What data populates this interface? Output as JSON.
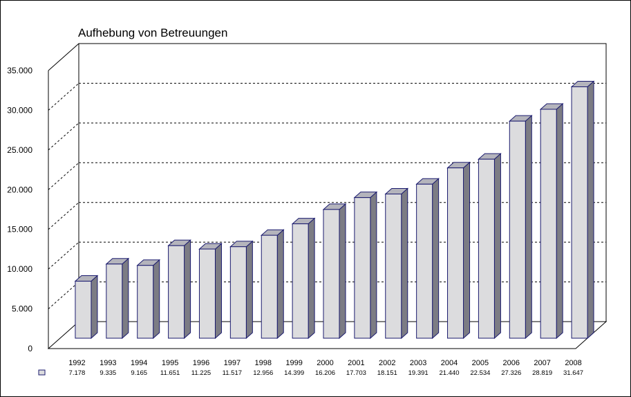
{
  "chart_data": {
    "type": "bar",
    "title": "Aufhebung von Betreuungen",
    "xlabel": "",
    "ylabel": "",
    "ylim": [
      0,
      35000
    ],
    "yticks": [
      0,
      5000,
      10000,
      15000,
      20000,
      25000,
      30000,
      35000
    ],
    "ytick_labels": [
      "0",
      "5.000",
      "10.000",
      "15.000",
      "20.000",
      "25.000",
      "30.000",
      "35.000"
    ],
    "categories": [
      "1992",
      "1993",
      "1994",
      "1995",
      "1996",
      "1997",
      "1998",
      "1999",
      "2000",
      "2001",
      "2002",
      "2003",
      "2004",
      "2005",
      "2006",
      "2007",
      "2008"
    ],
    "values": [
      7178,
      9335,
      9165,
      11651,
      11225,
      11517,
      12956,
      14399,
      16206,
      17703,
      18151,
      19391,
      21440,
      22534,
      27326,
      28819,
      31647
    ],
    "value_labels": [
      "7.178",
      "9.335",
      "9.165",
      "11.651",
      "11.225",
      "11.517",
      "12.956",
      "14.399",
      "16.206",
      "17.703",
      "18.151",
      "19.391",
      "21.440",
      "22.534",
      "27.326",
      "28.819",
      "31.647"
    ],
    "grid": true,
    "three_d": true,
    "legend": "data-table below axis",
    "colors": {
      "bar_front": "#dcdcde",
      "bar_side": "#7c7c84",
      "bar_top": "#b4b4bc",
      "bar_edge": "#1a1a6e",
      "grid": "#000000"
    }
  }
}
